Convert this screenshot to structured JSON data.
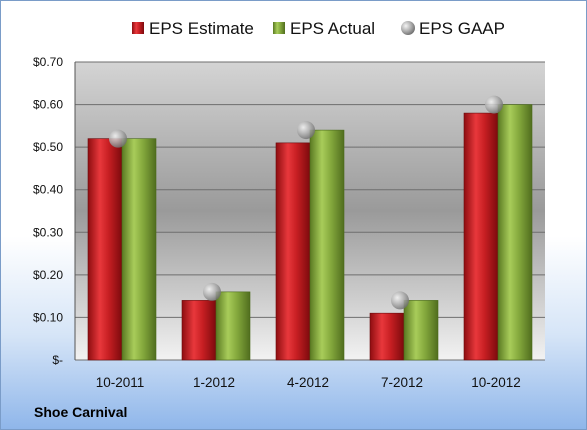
{
  "chart_data": {
    "type": "bar",
    "categories": [
      "10-2011",
      "1-2012",
      "4-2012",
      "7-2012",
      "10-2012"
    ],
    "series": [
      {
        "name": "EPS Estimate",
        "values": [
          0.52,
          0.14,
          0.51,
          0.11,
          0.58
        ],
        "color": "#cc1f24"
      },
      {
        "name": "EPS Actual",
        "values": [
          0.52,
          0.16,
          0.54,
          0.14,
          0.6
        ],
        "color": "#86ab3e"
      },
      {
        "name": "EPS GAAP",
        "values": [
          0.52,
          0.16,
          0.54,
          0.14,
          0.6
        ],
        "color": "#a6a6a6",
        "marker": "circle"
      }
    ],
    "ylim": [
      0,
      0.7
    ],
    "yticks": [
      0,
      0.1,
      0.2,
      0.3,
      0.4,
      0.5,
      0.6,
      0.7
    ],
    "ytick_labels": [
      "$-",
      "$0.10",
      "$0.20",
      "$0.30",
      "$0.40",
      "$0.50",
      "$0.60",
      "$0.70"
    ],
    "grid": true,
    "legend_position": "top"
  },
  "footer": {
    "company": "Shoe Carnival"
  }
}
